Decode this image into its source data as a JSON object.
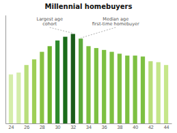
{
  "chart_data": {
    "type": "bar",
    "title": "Millennial homebuyers",
    "x": [
      24,
      25,
      26,
      27,
      28,
      29,
      30,
      31,
      32,
      33,
      34,
      35,
      36,
      37,
      38,
      39,
      40,
      41,
      42,
      43,
      44
    ],
    "values": [
      0.52,
      0.54,
      0.62,
      0.68,
      0.76,
      0.82,
      0.88,
      0.92,
      0.95,
      0.9,
      0.82,
      0.8,
      0.78,
      0.76,
      0.74,
      0.72,
      0.72,
      0.71,
      0.66,
      0.65,
      0.62
    ],
    "colors": [
      "#d4edaa",
      "#d4edaa",
      "#b8de7a",
      "#9ecf55",
      "#88c244",
      "#6db530",
      "#2d8a2d",
      "#1a6b1a",
      "#1a5c1a",
      "#5caa3c",
      "#7dc042",
      "#7dc042",
      "#7dc042",
      "#7dc042",
      "#7dc042",
      "#7dc042",
      "#7dc042",
      "#7dc042",
      "#b8de7a",
      "#c5e68a",
      "#c5e68a"
    ],
    "xlim": [
      23.3,
      44.7
    ],
    "ylim": [
      0,
      1.15
    ],
    "xticks": [
      24,
      26,
      28,
      30,
      32,
      34,
      36,
      38,
      40,
      42,
      44
    ],
    "tick_labels": "x",
    "grid": false,
    "annotations": [
      {
        "text": "Largest age\ncohort",
        "x": 32
      },
      {
        "text": "Median age\nfirst-time homebuyer",
        "x": 33
      }
    ]
  }
}
